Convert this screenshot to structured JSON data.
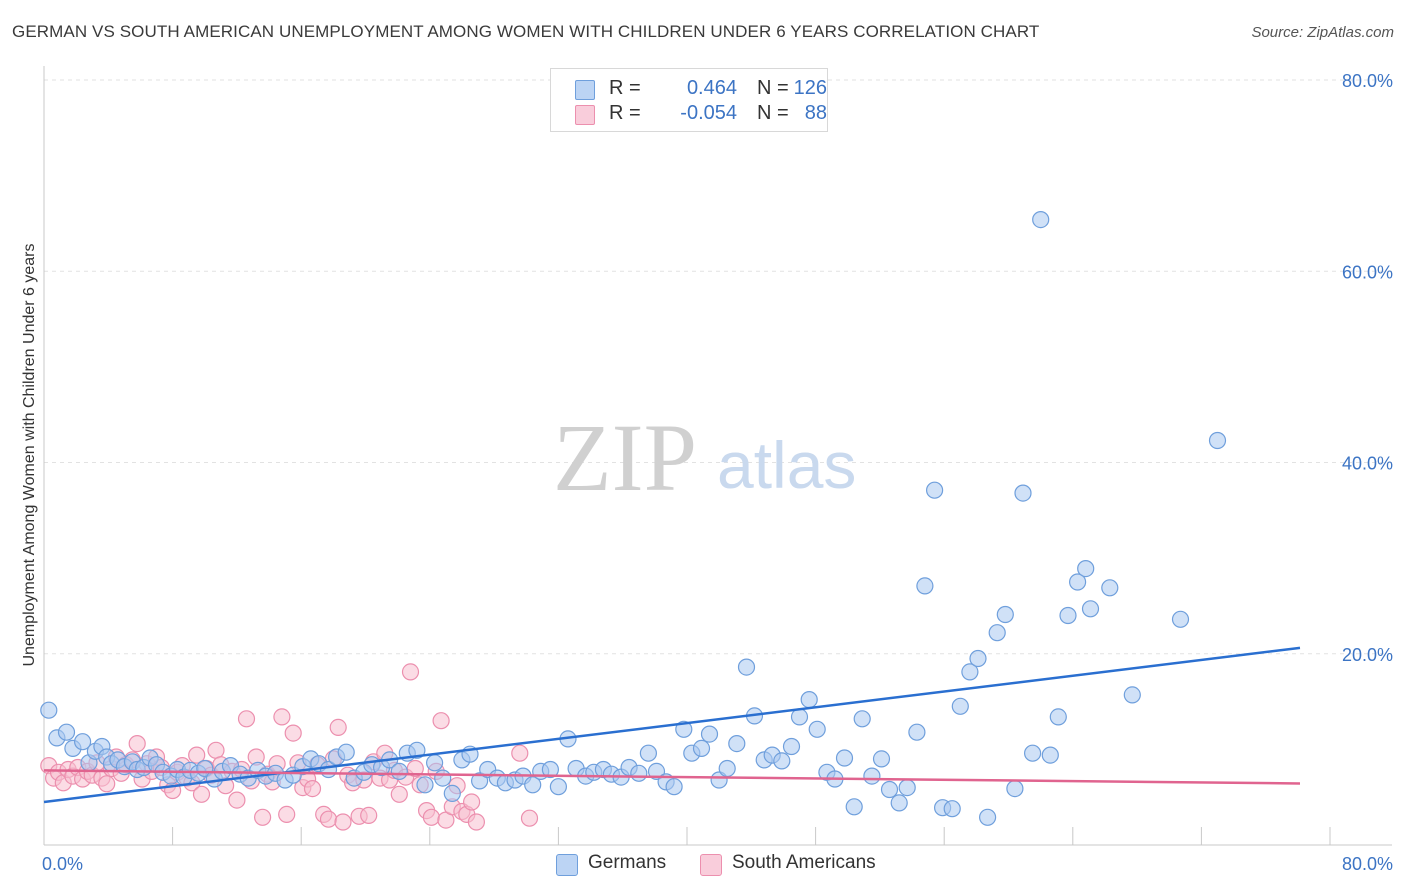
{
  "header": {
    "title": "GERMAN VS SOUTH AMERICAN UNEMPLOYMENT AMONG WOMEN WITH CHILDREN UNDER 6 YEARS CORRELATION CHART",
    "source": "Source: ZipAtlas.com"
  },
  "watermark": {
    "zip": "ZIP",
    "atlas": "atlas"
  },
  "legend": {
    "germans": {
      "r_label": "R =",
      "r_value": "0.464",
      "n_label": "N =",
      "n_value": "126"
    },
    "south_americans": {
      "r_label": "R =",
      "r_value": "-0.054",
      "n_label": "N =",
      "n_value": "88"
    }
  },
  "bottom_legend": {
    "germans": "Germans",
    "south_americans": "South Americans"
  },
  "colors": {
    "germans_fill": "#aac8f0",
    "germans_stroke": "#6f9fdc",
    "germans_line": "#2a6fd0",
    "sa_fill": "#f7bfd0",
    "sa_stroke": "#ec8fae",
    "sa_line": "#e0648f",
    "tick_text": "#3c74c4",
    "grid": "#e2e2e2"
  },
  "chart_data": {
    "type": "scatter",
    "title": "GERMAN VS SOUTH AMERICAN UNEMPLOYMENT AMONG WOMEN WITH CHILDREN UNDER 6 YEARS CORRELATION CHART",
    "xlabel": "",
    "ylabel": "Unemployment Among Women with Children Under 6 years",
    "xlim": [
      0,
      80
    ],
    "ylim": [
      0,
      80
    ],
    "x_tick_labels": [
      "0.0%",
      "80.0%"
    ],
    "y_ticks": [
      20,
      40,
      60,
      80
    ],
    "y_tick_labels": [
      "20.0%",
      "40.0%",
      "60.0%",
      "80.0%"
    ],
    "grid": true,
    "legend_position": "top-center",
    "series": [
      {
        "name": "Germans",
        "r": 0.464,
        "n": 126,
        "trend": {
          "x": [
            0,
            80
          ],
          "y": [
            4.5,
            21.0
          ]
        },
        "points": [
          [
            0.3,
            14.1
          ],
          [
            0.8,
            11.2
          ],
          [
            1.4,
            11.8
          ],
          [
            1.8,
            10.1
          ],
          [
            2.4,
            10.8
          ],
          [
            2.8,
            8.6
          ],
          [
            3.2,
            9.8
          ],
          [
            3.6,
            10.3
          ],
          [
            3.9,
            9.2
          ],
          [
            4.2,
            8.5
          ],
          [
            4.6,
            8.9
          ],
          [
            5.0,
            8.2
          ],
          [
            5.5,
            8.7
          ],
          [
            5.8,
            7.9
          ],
          [
            6.2,
            8.1
          ],
          [
            6.6,
            9.1
          ],
          [
            7.0,
            8.4
          ],
          [
            7.4,
            7.6
          ],
          [
            7.9,
            7.2
          ],
          [
            8.3,
            7.9
          ],
          [
            8.7,
            7.1
          ],
          [
            9.1,
            7.8
          ],
          [
            9.6,
            7.5
          ],
          [
            10.0,
            8.0
          ],
          [
            10.6,
            6.9
          ],
          [
            11.1,
            7.7
          ],
          [
            11.6,
            8.3
          ],
          [
            12.2,
            7.4
          ],
          [
            12.7,
            7.0
          ],
          [
            13.3,
            7.8
          ],
          [
            13.8,
            7.2
          ],
          [
            14.4,
            7.5
          ],
          [
            15.0,
            6.8
          ],
          [
            15.5,
            7.3
          ],
          [
            16.1,
            8.2
          ],
          [
            16.6,
            9.0
          ],
          [
            17.1,
            8.5
          ],
          [
            17.7,
            7.9
          ],
          [
            18.2,
            9.2
          ],
          [
            18.8,
            9.7
          ],
          [
            19.3,
            7.0
          ],
          [
            19.9,
            7.6
          ],
          [
            20.4,
            8.4
          ],
          [
            21.0,
            8.1
          ],
          [
            21.5,
            8.9
          ],
          [
            22.1,
            7.7
          ],
          [
            22.6,
            9.6
          ],
          [
            23.2,
            9.9
          ],
          [
            23.7,
            6.3
          ],
          [
            24.3,
            8.6
          ],
          [
            24.8,
            7.0
          ],
          [
            25.4,
            5.4
          ],
          [
            26.0,
            8.9
          ],
          [
            26.5,
            9.5
          ],
          [
            27.1,
            6.7
          ],
          [
            27.6,
            7.9
          ],
          [
            28.2,
            7.0
          ],
          [
            28.7,
            6.5
          ],
          [
            29.3,
            6.8
          ],
          [
            29.8,
            7.2
          ],
          [
            30.4,
            6.3
          ],
          [
            30.9,
            7.7
          ],
          [
            31.5,
            7.9
          ],
          [
            32.0,
            6.1
          ],
          [
            32.6,
            11.1
          ],
          [
            33.1,
            8.0
          ],
          [
            33.7,
            7.2
          ],
          [
            34.2,
            7.6
          ],
          [
            34.8,
            7.9
          ],
          [
            35.3,
            7.4
          ],
          [
            35.9,
            7.1
          ],
          [
            36.4,
            8.1
          ],
          [
            37.0,
            7.5
          ],
          [
            37.6,
            9.6
          ],
          [
            38.1,
            7.7
          ],
          [
            38.7,
            6.6
          ],
          [
            39.2,
            6.1
          ],
          [
            39.8,
            12.1
          ],
          [
            40.3,
            9.6
          ],
          [
            40.9,
            10.1
          ],
          [
            41.4,
            11.6
          ],
          [
            42.0,
            6.8
          ],
          [
            42.5,
            8.0
          ],
          [
            43.1,
            10.6
          ],
          [
            43.7,
            18.6
          ],
          [
            44.2,
            13.5
          ],
          [
            44.8,
            8.9
          ],
          [
            45.3,
            9.4
          ],
          [
            45.9,
            8.8
          ],
          [
            46.5,
            10.3
          ],
          [
            47.0,
            13.4
          ],
          [
            47.6,
            15.2
          ],
          [
            48.1,
            12.1
          ],
          [
            48.7,
            7.6
          ],
          [
            49.2,
            6.9
          ],
          [
            49.8,
            9.1
          ],
          [
            50.4,
            4.0
          ],
          [
            50.9,
            13.2
          ],
          [
            51.5,
            7.2
          ],
          [
            52.1,
            9.0
          ],
          [
            52.6,
            5.8
          ],
          [
            53.2,
            4.4
          ],
          [
            53.7,
            6.0
          ],
          [
            54.3,
            11.8
          ],
          [
            54.8,
            27.1
          ],
          [
            55.4,
            37.1
          ],
          [
            55.9,
            3.9
          ],
          [
            56.5,
            3.8
          ],
          [
            57.0,
            14.5
          ],
          [
            57.6,
            18.1
          ],
          [
            58.1,
            19.5
          ],
          [
            58.7,
            2.9
          ],
          [
            59.3,
            22.2
          ],
          [
            59.8,
            24.1
          ],
          [
            60.4,
            5.9
          ],
          [
            60.9,
            36.8
          ],
          [
            61.5,
            9.6
          ],
          [
            62.0,
            65.4
          ],
          [
            62.6,
            9.4
          ],
          [
            63.1,
            13.4
          ],
          [
            63.7,
            24.0
          ],
          [
            64.3,
            27.5
          ],
          [
            64.8,
            28.9
          ],
          [
            65.1,
            24.7
          ],
          [
            66.3,
            26.9
          ],
          [
            67.7,
            15.7
          ],
          [
            70.7,
            23.6
          ],
          [
            73.0,
            42.3
          ]
        ]
      },
      {
        "name": "South Americans",
        "r": -0.054,
        "n": 88,
        "trend": {
          "x": [
            0,
            80
          ],
          "y": [
            7.8,
            6.4
          ]
        },
        "points": [
          [
            0.3,
            8.3
          ],
          [
            0.6,
            7.0
          ],
          [
            0.9,
            7.6
          ],
          [
            1.2,
            6.5
          ],
          [
            1.5,
            7.9
          ],
          [
            1.8,
            7.2
          ],
          [
            2.1,
            8.1
          ],
          [
            2.4,
            6.9
          ],
          [
            2.7,
            7.7
          ],
          [
            3.0,
            7.3
          ],
          [
            3.3,
            8.6
          ],
          [
            3.6,
            7.0
          ],
          [
            3.9,
            6.4
          ],
          [
            4.2,
            8.0
          ],
          [
            4.5,
            9.2
          ],
          [
            4.8,
            7.5
          ],
          [
            5.1,
            8.4
          ],
          [
            5.5,
            8.9
          ],
          [
            5.8,
            10.6
          ],
          [
            6.1,
            6.9
          ],
          [
            6.4,
            8.5
          ],
          [
            6.7,
            7.7
          ],
          [
            7.0,
            9.2
          ],
          [
            7.3,
            8.1
          ],
          [
            7.7,
            6.3
          ],
          [
            8.0,
            5.7
          ],
          [
            8.3,
            7.6
          ],
          [
            8.6,
            8.3
          ],
          [
            8.9,
            7.0
          ],
          [
            9.2,
            6.5
          ],
          [
            9.5,
            9.4
          ],
          [
            9.8,
            5.3
          ],
          [
            10.1,
            8.0
          ],
          [
            10.4,
            7.3
          ],
          [
            10.7,
            9.9
          ],
          [
            11.0,
            8.4
          ],
          [
            11.3,
            6.2
          ],
          [
            11.7,
            7.7
          ],
          [
            12.0,
            4.7
          ],
          [
            12.3,
            7.9
          ],
          [
            12.6,
            13.2
          ],
          [
            12.9,
            6.7
          ],
          [
            13.2,
            9.2
          ],
          [
            13.6,
            2.9
          ],
          [
            13.9,
            7.4
          ],
          [
            14.2,
            6.6
          ],
          [
            14.5,
            8.5
          ],
          [
            14.8,
            13.4
          ],
          [
            15.1,
            3.2
          ],
          [
            15.5,
            11.7
          ],
          [
            15.8,
            8.6
          ],
          [
            16.1,
            6.0
          ],
          [
            16.4,
            6.9
          ],
          [
            16.7,
            5.9
          ],
          [
            17.0,
            8.4
          ],
          [
            17.4,
            3.2
          ],
          [
            17.7,
            2.7
          ],
          [
            18.0,
            9.0
          ],
          [
            18.3,
            12.3
          ],
          [
            18.6,
            2.4
          ],
          [
            18.9,
            7.3
          ],
          [
            19.2,
            6.5
          ],
          [
            19.6,
            3.0
          ],
          [
            19.9,
            6.8
          ],
          [
            20.2,
            3.1
          ],
          [
            20.5,
            8.7
          ],
          [
            20.9,
            7.0
          ],
          [
            21.2,
            9.6
          ],
          [
            21.5,
            6.8
          ],
          [
            21.8,
            7.8
          ],
          [
            22.1,
            5.3
          ],
          [
            22.5,
            7.1
          ],
          [
            22.8,
            18.1
          ],
          [
            23.1,
            8.0
          ],
          [
            23.4,
            6.3
          ],
          [
            23.8,
            3.6
          ],
          [
            24.1,
            2.9
          ],
          [
            24.4,
            7.7
          ],
          [
            24.7,
            13.0
          ],
          [
            25.0,
            2.6
          ],
          [
            25.4,
            4.0
          ],
          [
            25.7,
            6.2
          ],
          [
            26.0,
            3.5
          ],
          [
            26.3,
            3.2
          ],
          [
            26.6,
            4.5
          ],
          [
            26.9,
            2.4
          ],
          [
            29.6,
            9.6
          ],
          [
            30.2,
            2.8
          ]
        ]
      }
    ]
  }
}
